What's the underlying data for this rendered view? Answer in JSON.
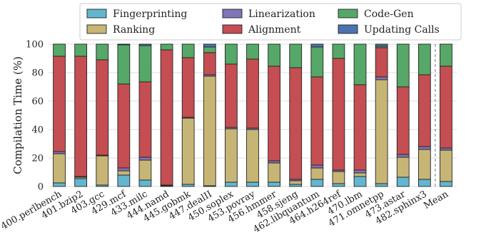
{
  "chart_data": {
    "type": "bar",
    "stacked": true,
    "title": "",
    "xlabel": "",
    "ylabel": "Compilation Time (%)",
    "ylim": [
      0,
      100
    ],
    "yticks": [
      0,
      20,
      40,
      60,
      80,
      100
    ],
    "grid": true,
    "legend_position": "top-center",
    "categories": [
      "400.perlbench",
      "401.bzip2",
      "403.gcc",
      "429.mcf",
      "433.milc",
      "444.namd",
      "445.gobmk",
      "447.dealII",
      "450.soplex",
      "453.povray",
      "456.hmmer",
      "458.sjeng",
      "462.libquantum",
      "464.h264ref",
      "470.lbm",
      "471.omnetpp",
      "473.astar",
      "482.sphinx3",
      "Mean"
    ],
    "series": [
      {
        "name": "Fingerprinting",
        "color": "#63b6cf",
        "values": [
          2.5,
          5.5,
          1.0,
          8.0,
          4.5,
          0.5,
          1.5,
          0.5,
          3.0,
          3.0,
          3.0,
          1.5,
          5.0,
          2.0,
          7.0,
          2.0,
          6.5,
          5.0,
          3.5
        ]
      },
      {
        "name": "Ranking",
        "color": "#c7b575",
        "values": [
          20.5,
          1.0,
          20.5,
          3.0,
          14.0,
          0.5,
          46.5,
          77.0,
          37.5,
          37.0,
          13.5,
          2.5,
          8.0,
          8.5,
          2.5,
          73.0,
          14.0,
          21.0,
          22.0
        ]
      },
      {
        "name": "Linearization",
        "color": "#8174b8",
        "values": [
          1.5,
          0.5,
          0.5,
          2.0,
          2.0,
          0.0,
          0.5,
          1.0,
          1.0,
          1.0,
          1.5,
          1.0,
          2.0,
          1.0,
          2.0,
          2.0,
          2.0,
          2.0,
          1.5
        ]
      },
      {
        "name": "Alignment",
        "color": "#c44e52",
        "values": [
          67.0,
          84.5,
          67.0,
          59.0,
          53.0,
          95.0,
          42.0,
          15.5,
          44.5,
          48.5,
          66.5,
          78.5,
          62.0,
          78.5,
          60.0,
          20.5,
          47.5,
          50.5,
          57.5
        ]
      },
      {
        "name": "Code-Gen",
        "color": "#55a868",
        "values": [
          8.5,
          8.5,
          11.0,
          27.5,
          25.5,
          4.0,
          9.5,
          4.0,
          14.0,
          10.5,
          15.5,
          16.5,
          21.0,
          10.0,
          28.5,
          1.0,
          30.0,
          21.5,
          15.5
        ]
      },
      {
        "name": "Updating Calls",
        "color": "#4c72b0",
        "values": [
          0.0,
          0.0,
          0.0,
          0.5,
          1.0,
          0.0,
          0.0,
          2.0,
          0.0,
          0.0,
          0.0,
          0.0,
          2.0,
          0.0,
          0.0,
          1.5,
          0.0,
          0.0,
          0.0
        ]
      }
    ]
  }
}
